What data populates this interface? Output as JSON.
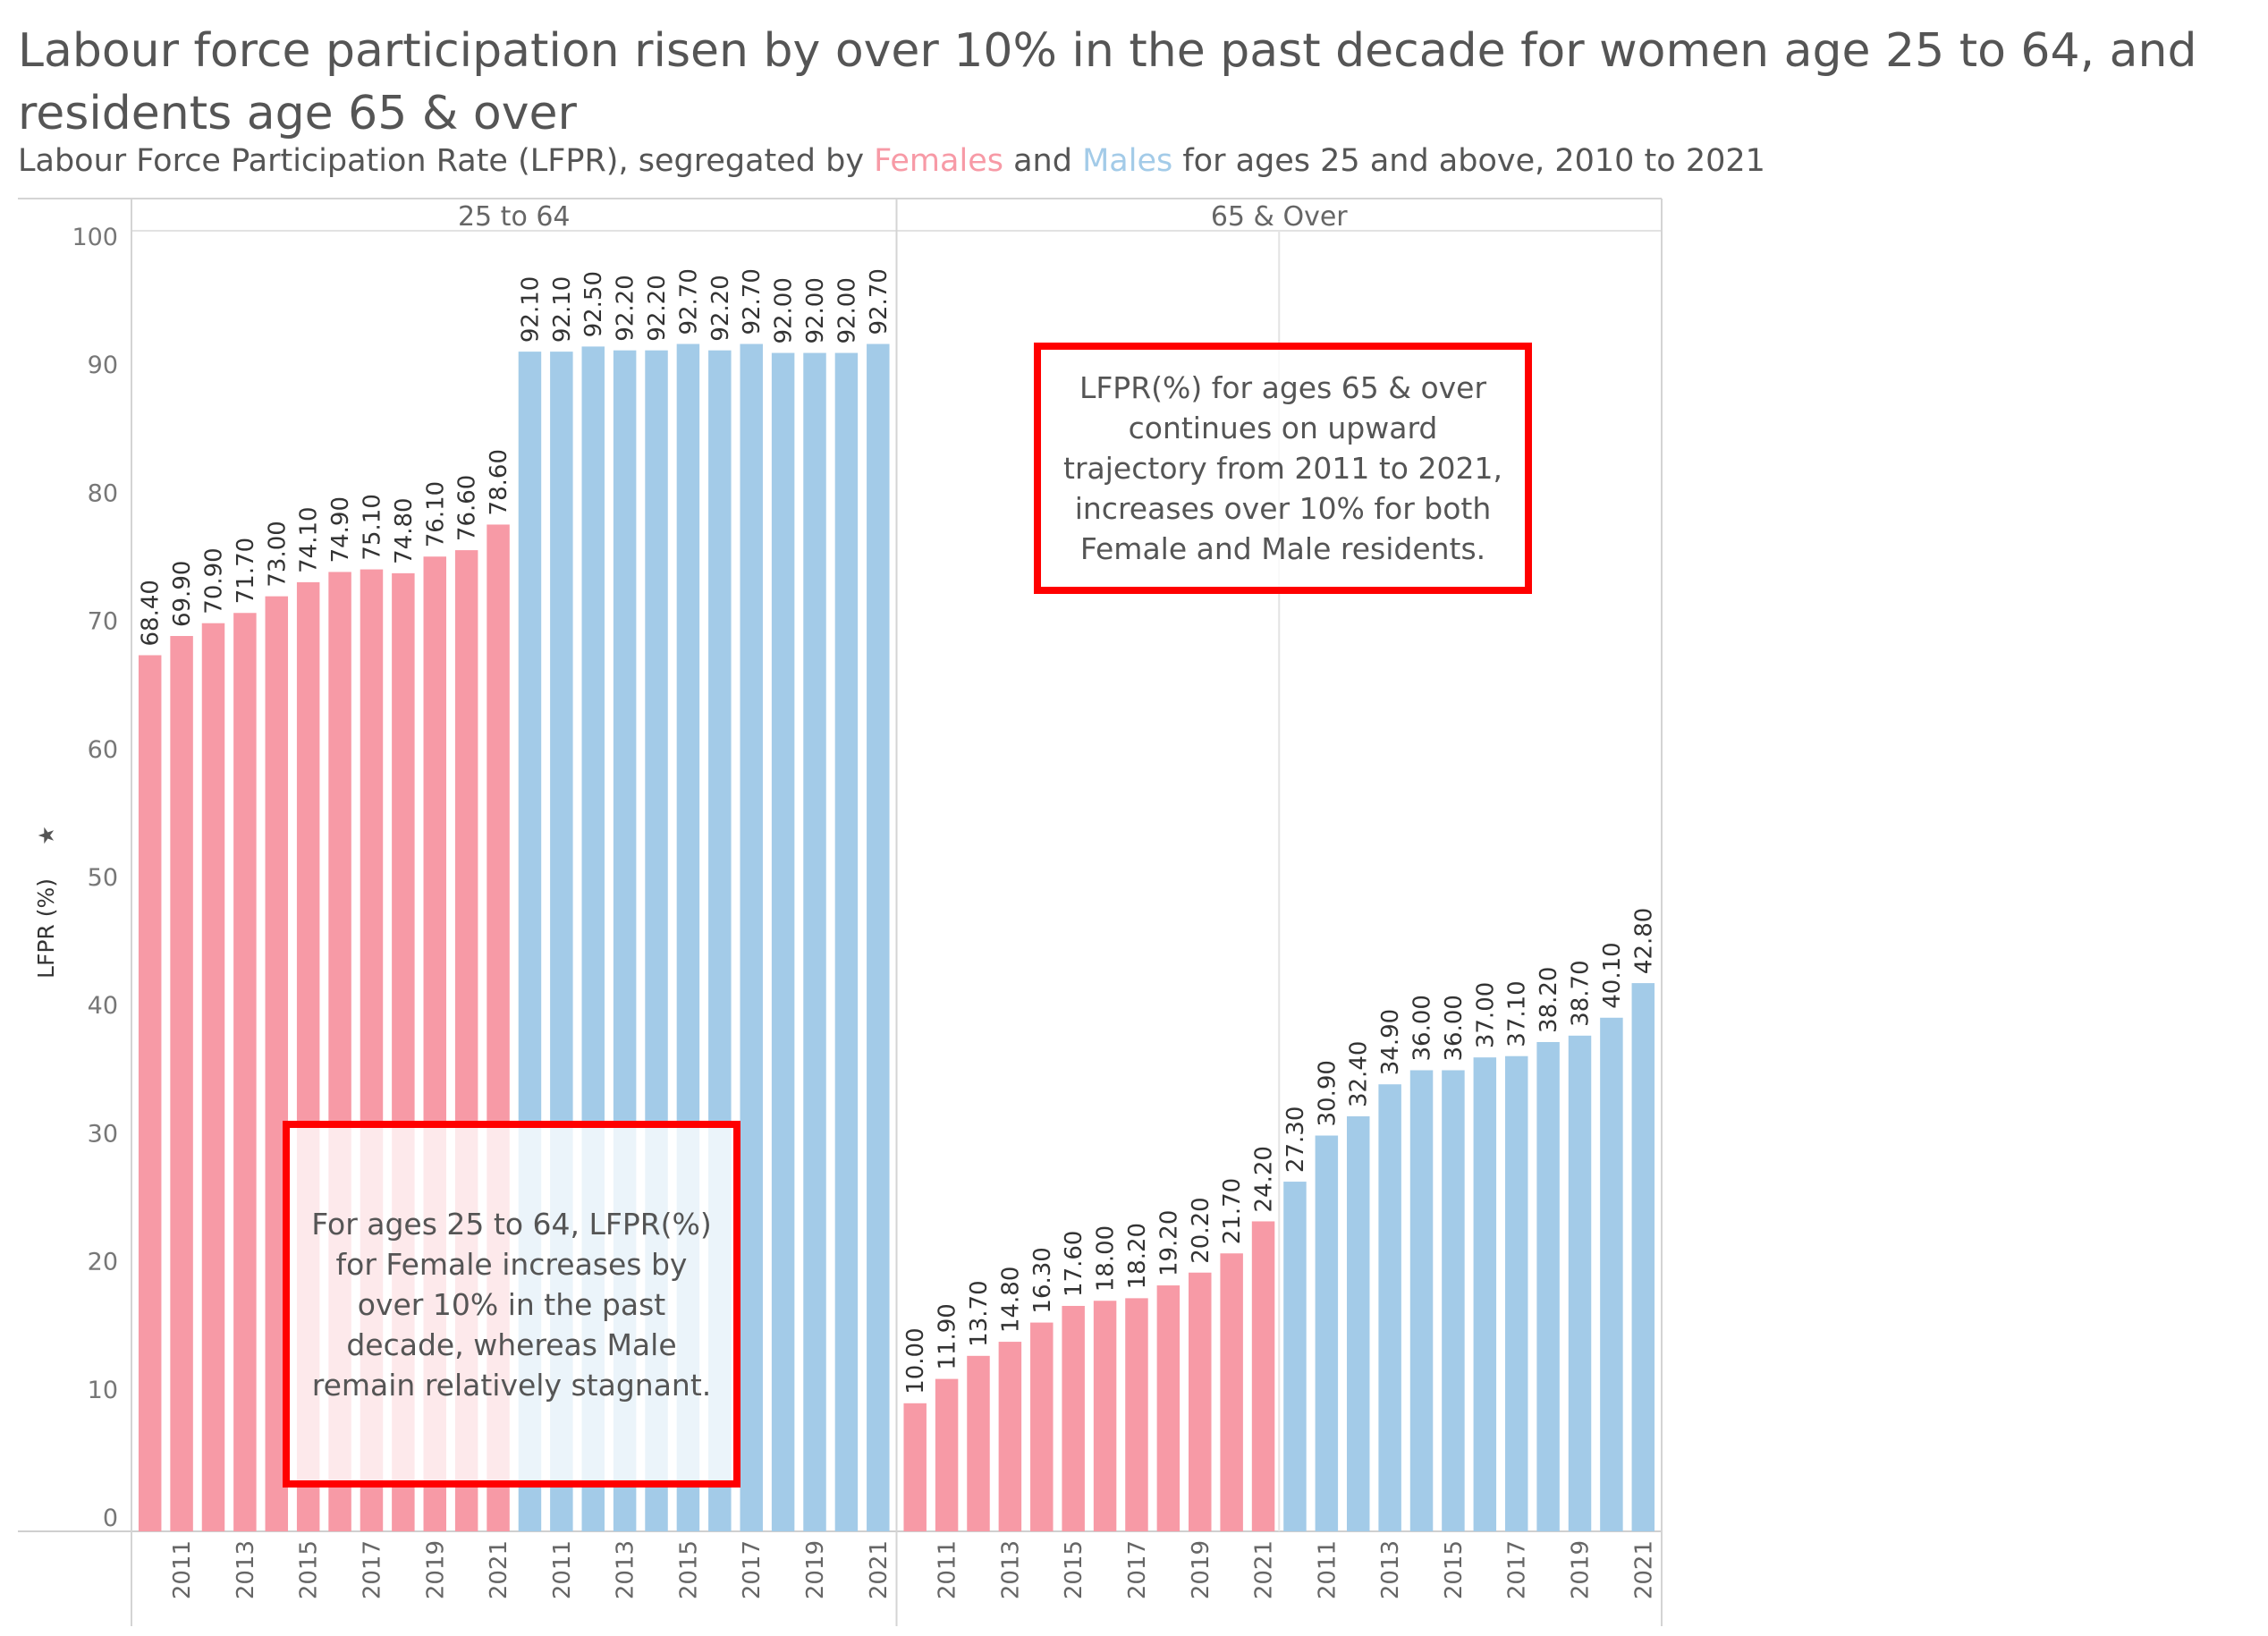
{
  "title": "Labour force participation risen by over 10% in the past decade for women age 25 to 64, and residents age 65 & over",
  "subtitle": {
    "prefix": "Labour Force Participation Rate (LFPR), segregated by ",
    "females": "Females",
    "and": " and ",
    "males": "Males",
    "suffix": " for ages 25 and above, 2010 to 2021"
  },
  "annotations": {
    "age_65_over": "LFPR(%) for ages 65 & over continues on upward trajectory from 2011 to 2021, increases over 10% for both Female and Male residents.",
    "age_25_64": "For ages 25 to 64, LFPR(%) for Female increases by over 10% in the past decade, whereas Male remain relatively stagnant."
  },
  "colors": {
    "female": "#f79aa6",
    "male": "#a3cbe8",
    "axis_text": "#666666",
    "grid": "#d9d9d9"
  },
  "chart_data": {
    "type": "bar",
    "ylabel": "LFPR (%)",
    "ylim": [
      0,
      100
    ],
    "yticks": [
      0,
      10,
      20,
      30,
      40,
      50,
      60,
      70,
      80,
      90,
      100
    ],
    "panels": [
      {
        "name": "25 to 64",
        "series": [
          {
            "name": "Females",
            "x": [
              2010,
              2011,
              2012,
              2013,
              2014,
              2015,
              2016,
              2017,
              2018,
              2019,
              2020,
              2021
            ],
            "values": [
              68.4,
              69.9,
              70.9,
              71.7,
              73.0,
              74.1,
              74.9,
              75.1,
              74.8,
              76.1,
              76.6,
              78.6
            ]
          },
          {
            "name": "Males",
            "x": [
              2010,
              2011,
              2012,
              2013,
              2014,
              2015,
              2016,
              2017,
              2018,
              2019,
              2020,
              2021
            ],
            "values": [
              92.1,
              92.1,
              92.5,
              92.2,
              92.2,
              92.7,
              92.2,
              92.7,
              92.0,
              92.0,
              92.0,
              92.7
            ]
          }
        ]
      },
      {
        "name": "65 & Over",
        "series": [
          {
            "name": "Females",
            "x": [
              2010,
              2011,
              2012,
              2013,
              2014,
              2015,
              2016,
              2017,
              2018,
              2019,
              2020,
              2021
            ],
            "values": [
              10.0,
              11.9,
              13.7,
              14.8,
              16.3,
              17.6,
              18.0,
              18.2,
              19.2,
              20.2,
              21.7,
              24.2
            ]
          },
          {
            "name": "Males",
            "x": [
              2010,
              2011,
              2012,
              2013,
              2014,
              2015,
              2016,
              2017,
              2018,
              2019,
              2020,
              2021
            ],
            "values": [
              27.3,
              30.9,
              32.4,
              34.9,
              36.0,
              36.0,
              37.0,
              37.1,
              38.2,
              38.7,
              40.1,
              42.8
            ]
          }
        ]
      }
    ],
    "xtick_labels": [
      "2011",
      "2013",
      "2015",
      "2017",
      "2019",
      "2021"
    ]
  }
}
